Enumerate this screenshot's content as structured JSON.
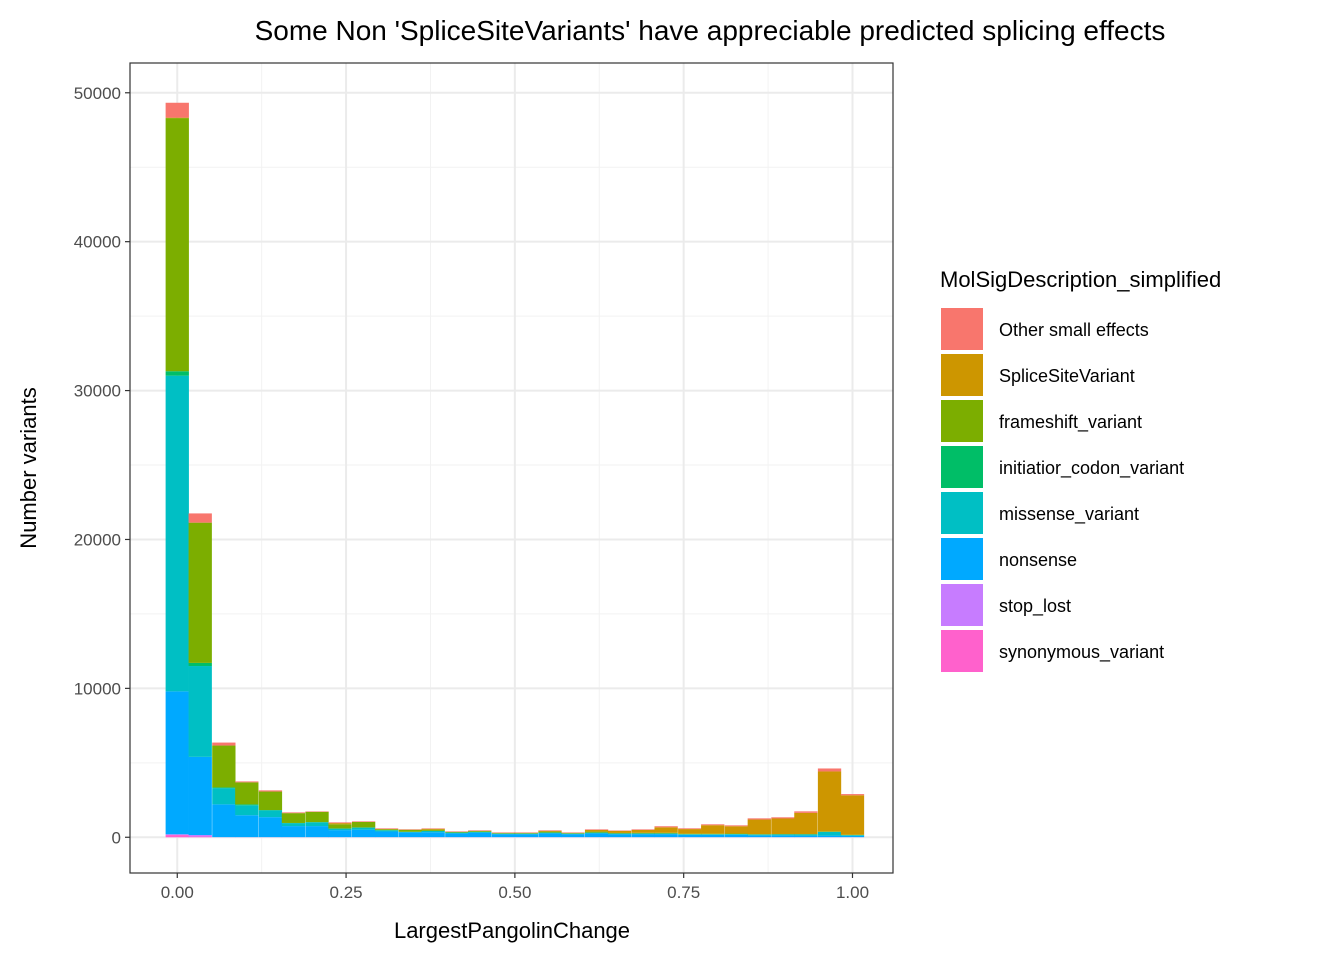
{
  "chart_data": {
    "type": "bar",
    "stacked": true,
    "title": "Some Non 'SpliceSiteVariants' have appreciable predicted splicing effects",
    "xlabel": "LargestPangolinChange",
    "ylabel": "Number variants",
    "xlim": [
      -0.07,
      1.06
    ],
    "ylim": [
      -2400,
      52000
    ],
    "xticks": [
      "0.00",
      "0.25",
      "0.50",
      "0.75",
      "1.00"
    ],
    "xtick_values": [
      0,
      0.25,
      0.5,
      0.75,
      1.0
    ],
    "yticks": [
      "0",
      "10000",
      "20000",
      "30000",
      "40000",
      "50000"
    ],
    "ytick_values": [
      0,
      10000,
      20000,
      30000,
      40000,
      50000
    ],
    "grid": true,
    "legend_title": "MolSigDescription_simplified",
    "legend_position": "right",
    "bin_width": 0.0345,
    "x": [
      0,
      0.034,
      0.069,
      0.103,
      0.138,
      0.172,
      0.207,
      0.241,
      0.276,
      0.31,
      0.345,
      0.379,
      0.414,
      0.448,
      0.483,
      0.517,
      0.552,
      0.586,
      0.621,
      0.655,
      0.69,
      0.724,
      0.759,
      0.793,
      0.828,
      0.862,
      0.897,
      0.931,
      0.966,
      1.0
    ],
    "series": [
      {
        "name": "Other small effects",
        "color": "#F8766D",
        "values": [
          1000,
          620,
          200,
          60,
          80,
          50,
          30,
          50,
          40,
          40,
          30,
          30,
          30,
          40,
          30,
          30,
          40,
          30,
          40,
          30,
          40,
          70,
          50,
          60,
          60,
          80,
          80,
          100,
          200,
          80
        ]
      },
      {
        "name": "SpliceSiteVariant",
        "color": "#CD9600",
        "values": [
          30,
          0,
          0,
          0,
          0,
          0,
          0,
          80,
          0,
          20,
          10,
          60,
          10,
          0,
          20,
          20,
          50,
          20,
          110,
          140,
          190,
          370,
          310,
          570,
          490,
          980,
          1040,
          1420,
          4030,
          2650
        ]
      },
      {
        "name": "frameshift_variant",
        "color": "#7CAE00",
        "values": [
          17000,
          9420,
          2810,
          1480,
          1240,
          660,
          690,
          280,
          370,
          60,
          130,
          80,
          40,
          60,
          30,
          30,
          60,
          30,
          60,
          30,
          40,
          40,
          30,
          30,
          30,
          20,
          20,
          20,
          20,
          20
        ]
      },
      {
        "name": "initiatior_codon_variant",
        "color": "#00BE67",
        "values": [
          300,
          210,
          50,
          60,
          20,
          10,
          10,
          10,
          10,
          10,
          10,
          10,
          10,
          10,
          10,
          10,
          10,
          10,
          10,
          10,
          10,
          10,
          10,
          10,
          10,
          10,
          10,
          10,
          10,
          10
        ]
      },
      {
        "name": "missense_variant",
        "color": "#00BFC4",
        "values": [
          21200,
          6100,
          1090,
          670,
          460,
          200,
          260,
          100,
          140,
          80,
          30,
          80,
          50,
          50,
          30,
          30,
          50,
          30,
          50,
          40,
          40,
          40,
          40,
          40,
          50,
          50,
          60,
          80,
          250,
          50
        ]
      },
      {
        "name": "nonsense",
        "color": "#00A9FF",
        "values": [
          9600,
          5250,
          2200,
          1470,
          1340,
          740,
          740,
          470,
          500,
          380,
          320,
          330,
          250,
          300,
          200,
          200,
          250,
          200,
          250,
          200,
          200,
          200,
          150,
          150,
          150,
          120,
          120,
          100,
          100,
          80
        ]
      },
      {
        "name": "stop_lost",
        "color": "#C77CFF",
        "values": [
          50,
          100,
          5,
          5,
          5,
          5,
          5,
          5,
          5,
          5,
          5,
          5,
          5,
          5,
          5,
          5,
          5,
          5,
          5,
          5,
          5,
          5,
          5,
          5,
          5,
          5,
          5,
          5,
          5,
          5
        ]
      },
      {
        "name": "synonymous_variant",
        "color": "#FF61CC",
        "values": [
          150,
          50,
          5,
          5,
          5,
          5,
          5,
          5,
          5,
          5,
          5,
          5,
          5,
          5,
          5,
          5,
          5,
          5,
          5,
          5,
          5,
          5,
          5,
          5,
          5,
          5,
          5,
          5,
          5,
          5
        ]
      }
    ]
  }
}
